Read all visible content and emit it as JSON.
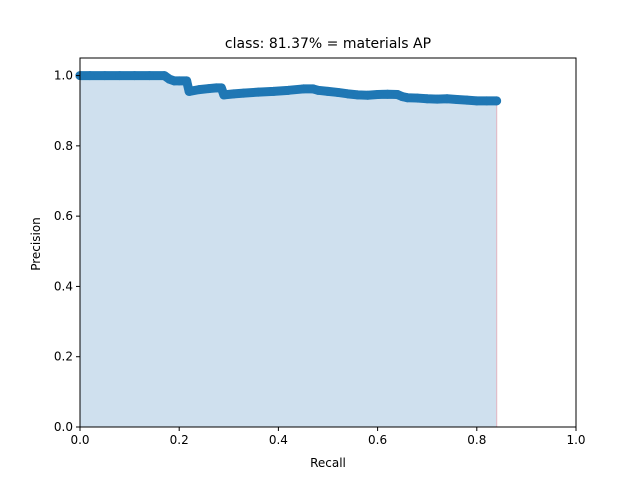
{
  "chart_data": {
    "type": "area",
    "title": "class: 81.37% = materials AP",
    "xlabel": "Recall",
    "ylabel": "Precision",
    "xlim": [
      0,
      1
    ],
    "ylim": [
      0,
      1.05
    ],
    "xticks": [
      0,
      0.2,
      0.4,
      0.6,
      0.8,
      1
    ],
    "xtick_labels": [
      "0.0",
      "0.2",
      "0.4",
      "0.6",
      "0.8",
      "1.0"
    ],
    "yticks": [
      0,
      0.2,
      0.4,
      0.6,
      0.8,
      1
    ],
    "ytick_labels": [
      "0.0",
      "0.2",
      "0.4",
      "0.6",
      "0.8",
      "1.0"
    ],
    "grid": false,
    "series": [
      {
        "style": "markers+line",
        "color": "#1f77b4",
        "fill_color": "#cfe0ee",
        "x": [
          0.0,
          0.02,
          0.05,
          0.08,
          0.11,
          0.14,
          0.17,
          0.18,
          0.19,
          0.2,
          0.215,
          0.22,
          0.24,
          0.26,
          0.275,
          0.285,
          0.29,
          0.31,
          0.33,
          0.36,
          0.39,
          0.42,
          0.45,
          0.47,
          0.48,
          0.5,
          0.52,
          0.54,
          0.56,
          0.58,
          0.6,
          0.62,
          0.64,
          0.65,
          0.66,
          0.68,
          0.7,
          0.72,
          0.74,
          0.76,
          0.78,
          0.8,
          0.82,
          0.84
        ],
        "y": [
          1.0,
          1.0,
          1.0,
          1.0,
          1.0,
          1.0,
          1.0,
          0.99,
          0.985,
          0.985,
          0.985,
          0.955,
          0.96,
          0.963,
          0.965,
          0.965,
          0.945,
          0.948,
          0.95,
          0.953,
          0.955,
          0.958,
          0.962,
          0.962,
          0.958,
          0.955,
          0.952,
          0.948,
          0.945,
          0.944,
          0.946,
          0.947,
          0.946,
          0.94,
          0.937,
          0.936,
          0.934,
          0.933,
          0.934,
          0.932,
          0.93,
          0.928,
          0.928,
          0.928
        ]
      }
    ],
    "fill_to_x": 0.84
  }
}
